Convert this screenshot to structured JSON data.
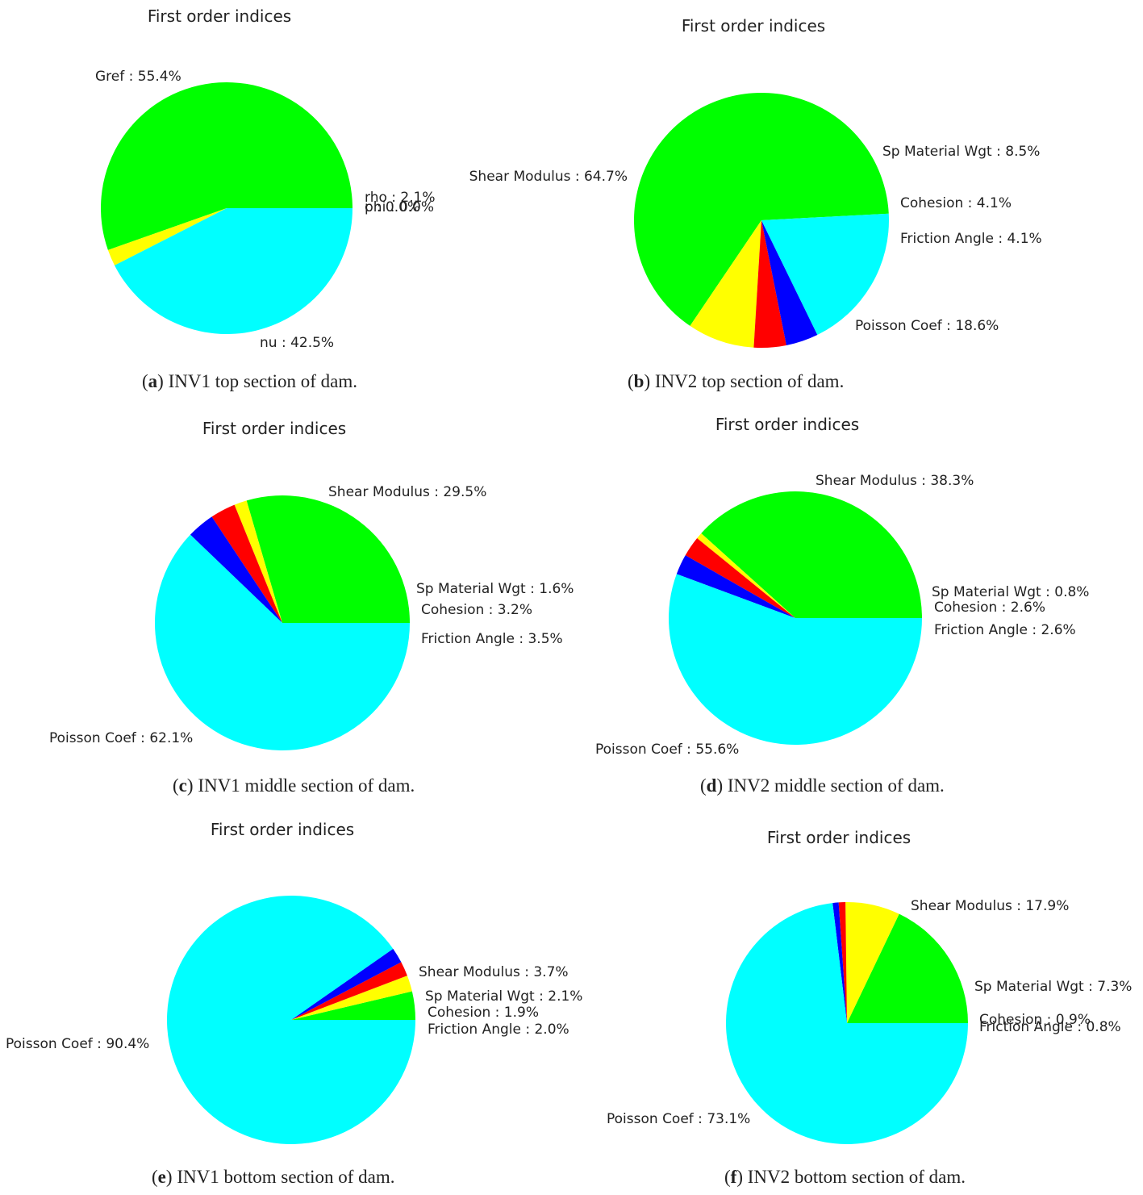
{
  "chart_data": [
    {
      "type": "pie",
      "title": "First order indices",
      "caption_letter": "a",
      "caption_text": " INV1 top section of dam.",
      "slices": [
        {
          "label": "Gref : 55.4%",
          "value": 55.4,
          "color": "#00ff00"
        },
        {
          "label": "rho : 2.1%",
          "value": 2.1,
          "color": "#ffff00"
        },
        {
          "label": "c : 0.0%",
          "value": 0.0,
          "color": "#ff0000"
        },
        {
          "label": "phi : 0.0%",
          "value": 0.0,
          "color": "#0000ff"
        },
        {
          "label": "nu : 42.5%",
          "value": 42.5,
          "color": "#00ffff"
        }
      ]
    },
    {
      "type": "pie",
      "title": "First order indices",
      "caption_letter": "b",
      "caption_text": " INV2 top section of dam.",
      "slices": [
        {
          "label": "Shear Modulus : 64.7%",
          "value": 64.7,
          "color": "#00ff00"
        },
        {
          "label": "Sp Material Wgt : 8.5%",
          "value": 8.5,
          "color": "#ffff00"
        },
        {
          "label": "Cohesion : 4.1%",
          "value": 4.1,
          "color": "#ff0000"
        },
        {
          "label": "Friction Angle : 4.1%",
          "value": 4.1,
          "color": "#0000ff"
        },
        {
          "label": "Poisson Coef : 18.6%",
          "value": 18.6,
          "color": "#00ffff"
        }
      ]
    },
    {
      "type": "pie",
      "title": "First order indices",
      "caption_letter": "c",
      "caption_text": " INV1 middle section of dam.",
      "slices": [
        {
          "label": "Shear Modulus : 29.5%",
          "value": 29.5,
          "color": "#00ff00"
        },
        {
          "label": "Sp Material Wgt : 1.6%",
          "value": 1.6,
          "color": "#ffff00"
        },
        {
          "label": "Cohesion : 3.2%",
          "value": 3.2,
          "color": "#ff0000"
        },
        {
          "label": "Friction Angle : 3.5%",
          "value": 3.5,
          "color": "#0000ff"
        },
        {
          "label": "Poisson Coef : 62.1%",
          "value": 62.1,
          "color": "#00ffff"
        }
      ]
    },
    {
      "type": "pie",
      "title": "First order indices",
      "caption_letter": "d",
      "caption_text": " INV2 middle section of dam.",
      "slices": [
        {
          "label": "Shear Modulus : 38.3%",
          "value": 38.3,
          "color": "#00ff00"
        },
        {
          "label": "Sp Material Wgt : 0.8%",
          "value": 0.8,
          "color": "#ffff00"
        },
        {
          "label": "Cohesion : 2.6%",
          "value": 2.6,
          "color": "#ff0000"
        },
        {
          "label": "Friction Angle : 2.6%",
          "value": 2.6,
          "color": "#0000ff"
        },
        {
          "label": "Poisson Coef : 55.6%",
          "value": 55.6,
          "color": "#00ffff"
        }
      ]
    },
    {
      "type": "pie",
      "title": "First order indices",
      "caption_letter": "e",
      "caption_text": " INV1 bottom section of dam.",
      "slices": [
        {
          "label": "Shear Modulus : 3.7%",
          "value": 3.7,
          "color": "#00ff00"
        },
        {
          "label": "Sp Material Wgt : 2.1%",
          "value": 2.1,
          "color": "#ffff00"
        },
        {
          "label": "Cohesion : 1.9%",
          "value": 1.9,
          "color": "#ff0000"
        },
        {
          "label": "Friction Angle : 2.0%",
          "value": 2.0,
          "color": "#0000ff"
        },
        {
          "label": "Poisson Coef : 90.4%",
          "value": 90.4,
          "color": "#00ffff"
        }
      ]
    },
    {
      "type": "pie",
      "title": "First order indices",
      "caption_letter": "f",
      "caption_text": " INV2 bottom section of dam.",
      "slices": [
        {
          "label": "Shear Modulus : 17.9%",
          "value": 17.9,
          "color": "#00ff00"
        },
        {
          "label": "Sp Material Wgt : 7.3%",
          "value": 7.3,
          "color": "#ffff00"
        },
        {
          "label": "Cohesion : 0.9%",
          "value": 0.9,
          "color": "#ff0000"
        },
        {
          "label": "Friction Angle : 0.8%",
          "value": 0.8,
          "color": "#0000ff"
        },
        {
          "label": "Poisson Coef : 73.1%",
          "value": 73.1,
          "color": "#00ffff"
        }
      ]
    }
  ]
}
